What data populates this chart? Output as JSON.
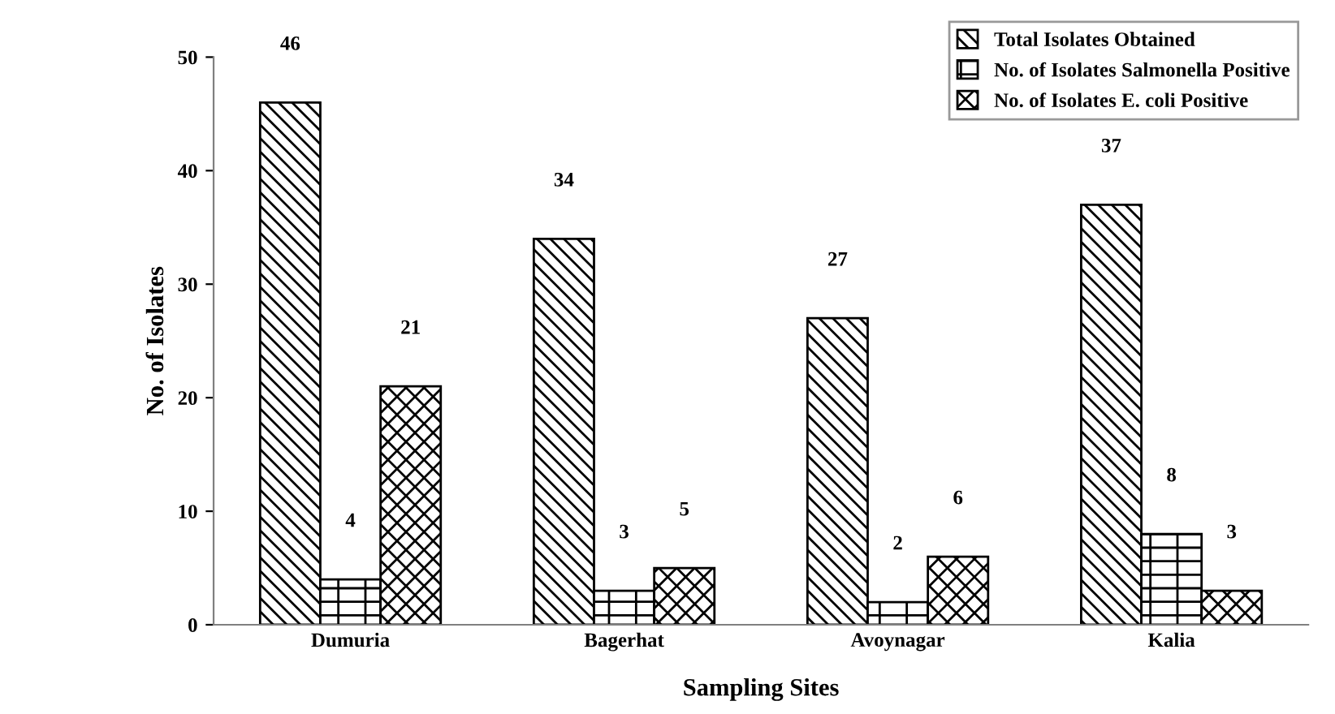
{
  "chart_data": {
    "type": "bar",
    "xlabel": "Sampling Sites",
    "ylabel": "No. of Isolates",
    "categories": [
      "Dumuria",
      "Bagerhat",
      "Avoynagar",
      "Kalia"
    ],
    "series": [
      {
        "name": "Total Isolates Obtained",
        "color": "#000000",
        "values": [
          46,
          34,
          27,
          37
        ]
      },
      {
        "name": "No. of Isolates Salmonella Positive",
        "color": "#000000",
        "values": [
          4,
          3,
          2,
          8
        ]
      },
      {
        "name": "No. of Isolates E. coli Positive",
        "color": "#000000",
        "values": [
          21,
          5,
          6,
          3
        ]
      }
    ],
    "ylim": [
      0,
      50
    ],
    "yticks": [
      0,
      10,
      20,
      30,
      40,
      50
    ],
    "data_labels": true,
    "grid": false,
    "legend": "top right"
  }
}
